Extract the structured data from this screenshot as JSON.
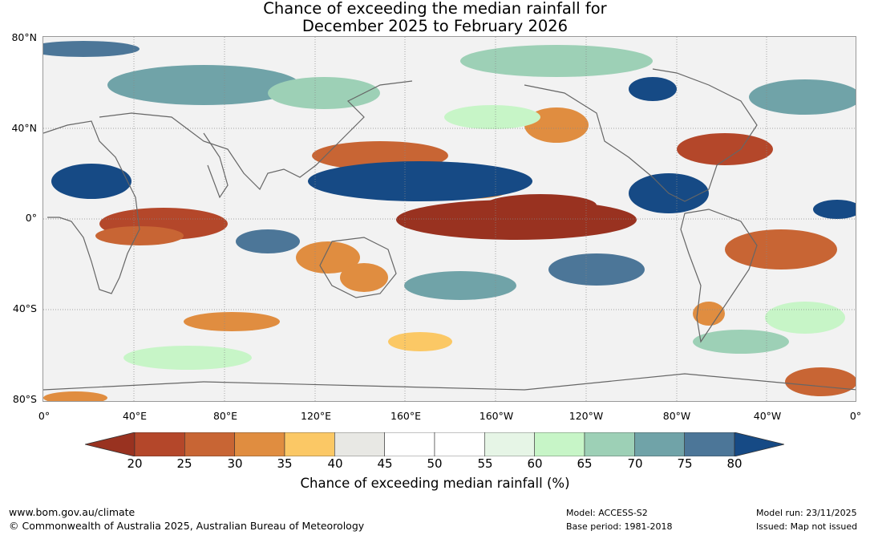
{
  "title": {
    "line1": "Chance of exceeding the median rainfall for",
    "line2": "December 2025 to February 2026"
  },
  "map": {
    "lat_labels": [
      "80°N",
      "40°N",
      "0°",
      "40°S",
      "80°S"
    ],
    "lon_labels": [
      "0°",
      "40°E",
      "80°E",
      "120°E",
      "160°E",
      "160°W",
      "120°W",
      "80°W",
      "40°W",
      "0°"
    ],
    "ocean_color": "#f2f2f2",
    "coastline_color": "#666666"
  },
  "colorbar": {
    "ticks": [
      "20",
      "25",
      "30",
      "35",
      "40",
      "45",
      "50",
      "55",
      "60",
      "65",
      "70",
      "75",
      "80"
    ],
    "colors": [
      "#993220",
      "#b4472a",
      "#c86534",
      "#e08d40",
      "#fbc865",
      "#e8e8e4",
      "#ffffff",
      "#ffffff",
      "#e6f5e6",
      "#c7f5c7",
      "#9dd0b6",
      "#70a3a8",
      "#4c7698",
      "#164a85"
    ],
    "label": "Chance of exceeding median rainfall (%)"
  },
  "footer": {
    "website": "www.bom.gov.au/climate",
    "copyright": "© Commonwealth of Australia 2025, Australian Bureau of Meteorology",
    "model": "Model: ACCESS-S2",
    "base_period": "Base period: 1981-2018",
    "model_run": "Model run: 23/11/2025",
    "issued": "Issued: Map not issued"
  }
}
